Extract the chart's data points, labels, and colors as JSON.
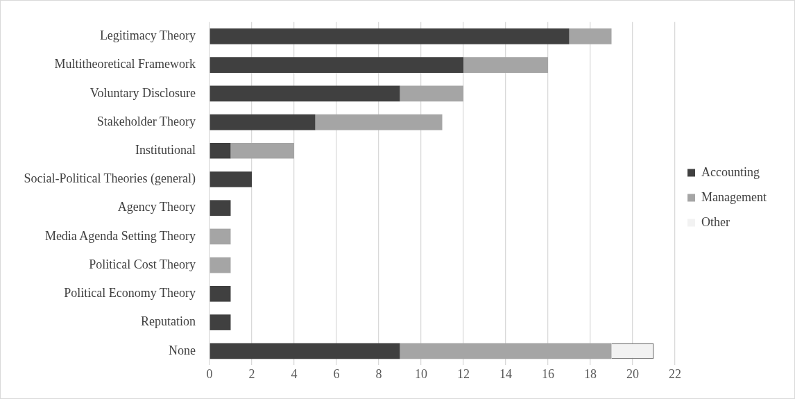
{
  "chart_data": {
    "type": "bar",
    "orientation": "horizontal",
    "stacked": true,
    "categories": [
      "Legitimacy Theory",
      "Multitheoretical Framework",
      "Voluntary Disclosure",
      "Stakeholder Theory",
      "Institutional",
      "Social-Political Theories (general)",
      "Agency Theory",
      "Media Agenda Setting Theory",
      "Political Cost Theory",
      "Political Economy Theory",
      "Reputation",
      "None"
    ],
    "series": [
      {
        "name": "Accounting",
        "color": "#404040",
        "values": [
          17,
          12,
          9,
          5,
          1,
          2,
          1,
          null,
          null,
          1,
          1,
          9
        ]
      },
      {
        "name": "Management",
        "color": "#a5a5a5",
        "values": [
          2,
          4,
          3,
          6,
          3,
          null,
          null,
          1,
          1,
          null,
          null,
          10
        ]
      },
      {
        "name": "Other",
        "color": "#f2f2f2",
        "values": [
          null,
          null,
          null,
          null,
          null,
          null,
          null,
          null,
          null,
          null,
          null,
          2
        ]
      }
    ],
    "xlim": [
      0,
      22
    ],
    "xticks": [
      0,
      2,
      4,
      6,
      8,
      10,
      12,
      14,
      16,
      18,
      20,
      22
    ],
    "grid": "x",
    "legend": "right"
  }
}
